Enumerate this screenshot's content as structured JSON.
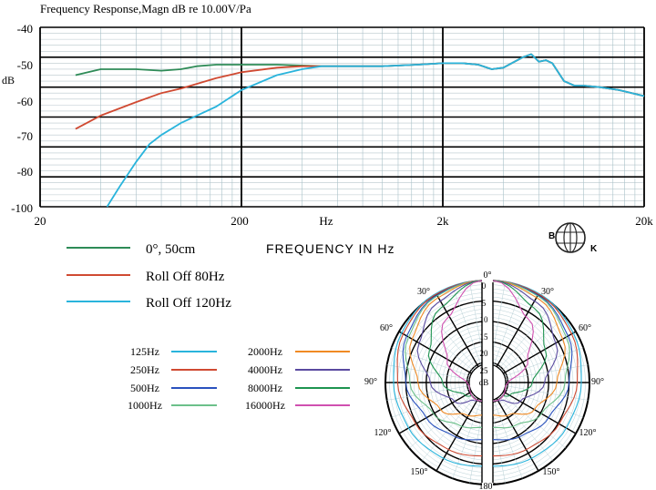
{
  "chart_data": [
    {
      "type": "line",
      "title": "Frequency   Response,Magn   dB re 10.00V/Pa",
      "ylabel": "dB",
      "xlabel": "FREQUENCY IN Hz",
      "x_scale": "log",
      "xlim": [
        20,
        20000
      ],
      "ylim": [
        -100,
        -40
      ],
      "x_ticks": [
        "20",
        "200",
        "Hz",
        "2k",
        "20k"
      ],
      "y_ticks": [
        "-40",
        "-50",
        "-60",
        "-70",
        "-80",
        "-100"
      ],
      "grid": true,
      "legend_position": "bottom-left",
      "series": [
        {
          "name": "0°, 50cm",
          "color": "#2e8b57",
          "points": [
            [
              30,
              -56
            ],
            [
              40,
              -54
            ],
            [
              60,
              -54
            ],
            [
              80,
              -54.5
            ],
            [
              100,
              -54
            ],
            [
              120,
              -53
            ],
            [
              150,
              -52.5
            ],
            [
              200,
              -52.5
            ],
            [
              300,
              -52.5
            ],
            [
              500,
              -53
            ],
            [
              1000,
              -53
            ],
            [
              1500,
              -52.5
            ],
            [
              2000,
              -52
            ],
            [
              2500,
              -52
            ],
            [
              3000,
              -52.5
            ],
            [
              3500,
              -54
            ],
            [
              4000,
              -53.5
            ],
            [
              5000,
              -50
            ],
            [
              5500,
              -49
            ],
            [
              6000,
              -51.5
            ],
            [
              6500,
              -51
            ],
            [
              7000,
              -52
            ],
            [
              8000,
              -58
            ],
            [
              9000,
              -59.5
            ],
            [
              10000,
              -59.5
            ],
            [
              12000,
              -60
            ],
            [
              15000,
              -61
            ],
            [
              20000,
              -63
            ]
          ]
        },
        {
          "name": "Roll Off  80Hz",
          "color": "#d04a32",
          "points": [
            [
              30,
              -74
            ],
            [
              40,
              -69.5
            ],
            [
              60,
              -65
            ],
            [
              80,
              -62
            ],
            [
              100,
              -60.5
            ],
            [
              150,
              -57
            ],
            [
              200,
              -55
            ],
            [
              300,
              -53.5
            ],
            [
              400,
              -53
            ],
            [
              500,
              -53
            ],
            [
              1000,
              -53
            ],
            [
              1500,
              -52.5
            ],
            [
              2000,
              -52
            ],
            [
              2500,
              -52
            ],
            [
              3000,
              -52.5
            ],
            [
              3500,
              -54
            ],
            [
              4000,
              -53.5
            ],
            [
              5000,
              -50
            ],
            [
              5500,
              -49
            ],
            [
              6000,
              -51.5
            ],
            [
              6500,
              -51
            ],
            [
              7000,
              -52
            ],
            [
              8000,
              -58
            ],
            [
              9000,
              -59.5
            ],
            [
              10000,
              -59.5
            ],
            [
              12000,
              -60
            ],
            [
              15000,
              -61
            ],
            [
              20000,
              -63
            ]
          ]
        },
        {
          "name": "Roll Off  120Hz",
          "color": "#29b4dc",
          "points": [
            [
              43,
              -100
            ],
            [
              50,
              -93
            ],
            [
              60,
              -85
            ],
            [
              70,
              -79
            ],
            [
              80,
              -76
            ],
            [
              100,
              -72
            ],
            [
              150,
              -66.5
            ],
            [
              200,
              -61
            ],
            [
              300,
              -56
            ],
            [
              400,
              -54
            ],
            [
              500,
              -53
            ],
            [
              1000,
              -53
            ],
            [
              1500,
              -52.5
            ],
            [
              2000,
              -52
            ],
            [
              2500,
              -52
            ],
            [
              3000,
              -52.5
            ],
            [
              3500,
              -54
            ],
            [
              4000,
              -53.5
            ],
            [
              5000,
              -50
            ],
            [
              5500,
              -49
            ],
            [
              6000,
              -51.5
            ],
            [
              6500,
              -51
            ],
            [
              7000,
              -52
            ],
            [
              8000,
              -58
            ],
            [
              9000,
              -59.5
            ],
            [
              10000,
              -59.5
            ],
            [
              12000,
              -60
            ],
            [
              15000,
              -61
            ],
            [
              20000,
              -63
            ]
          ]
        }
      ]
    },
    {
      "type": "polar",
      "radial_unit": "dB",
      "radial_ticks": [
        "0",
        "5",
        "10",
        "15",
        "20",
        "25"
      ],
      "angle_ticks_right": [
        "0°",
        "30°",
        "60°",
        "90°",
        "120°",
        "150°",
        "180°"
      ],
      "angle_ticks_left": [
        "30°",
        "60°",
        "90°",
        "120°",
        "150°"
      ],
      "legend_left": [
        {
          "name": "125Hz",
          "color": "#29b4dc"
        },
        {
          "name": "250Hz",
          "color": "#d04a32"
        },
        {
          "name": "500Hz",
          "color": "#2a52be"
        },
        {
          "name": "1000Hz",
          "color": "#6cc08a"
        }
      ],
      "legend_right": [
        {
          "name": "2000Hz",
          "color": "#f08a24"
        },
        {
          "name": "4000Hz",
          "color": "#5a4aa0"
        },
        {
          "name": "8000Hz",
          "color": "#1e9450"
        },
        {
          "name": "16000Hz",
          "color": "#d050b0"
        }
      ],
      "patterns": {
        "125Hz": [
          [
            0,
            0
          ],
          [
            30,
            0.3
          ],
          [
            60,
            1
          ],
          [
            90,
            2
          ],
          [
            120,
            3
          ],
          [
            150,
            4
          ],
          [
            180,
            4.5
          ]
        ],
        "250Hz": [
          [
            0,
            0
          ],
          [
            30,
            0.5
          ],
          [
            60,
            1.5
          ],
          [
            90,
            3
          ],
          [
            120,
            5
          ],
          [
            150,
            6.5
          ],
          [
            180,
            7
          ]
        ],
        "500Hz": [
          [
            0,
            0
          ],
          [
            30,
            0.8
          ],
          [
            60,
            2.5
          ],
          [
            90,
            5
          ],
          [
            120,
            8
          ],
          [
            150,
            10
          ],
          [
            180,
            11
          ]
        ],
        "1000Hz": [
          [
            0,
            0
          ],
          [
            30,
            1
          ],
          [
            60,
            3
          ],
          [
            90,
            6
          ],
          [
            120,
            10
          ],
          [
            150,
            13
          ],
          [
            180,
            14
          ]
        ],
        "2000Hz": [
          [
            0,
            0
          ],
          [
            30,
            1.5
          ],
          [
            60,
            4
          ],
          [
            90,
            8
          ],
          [
            120,
            12
          ],
          [
            150,
            16
          ],
          [
            180,
            17
          ]
        ],
        "4000Hz": [
          [
            0,
            0
          ],
          [
            30,
            2.5
          ],
          [
            60,
            6
          ],
          [
            90,
            11
          ],
          [
            120,
            16
          ],
          [
            150,
            20
          ],
          [
            180,
            21
          ]
        ],
        "8000Hz": [
          [
            0,
            0
          ],
          [
            30,
            4
          ],
          [
            60,
            9
          ],
          [
            90,
            14
          ],
          [
            120,
            19
          ],
          [
            150,
            22
          ],
          [
            180,
            23
          ]
        ],
        "16000Hz": [
          [
            0,
            0
          ],
          [
            30,
            7
          ],
          [
            60,
            14
          ],
          [
            90,
            20
          ],
          [
            120,
            23
          ],
          [
            150,
            24
          ],
          [
            180,
            25
          ]
        ]
      }
    }
  ],
  "logo": {
    "left_letter": "B",
    "right_letter": "K"
  }
}
